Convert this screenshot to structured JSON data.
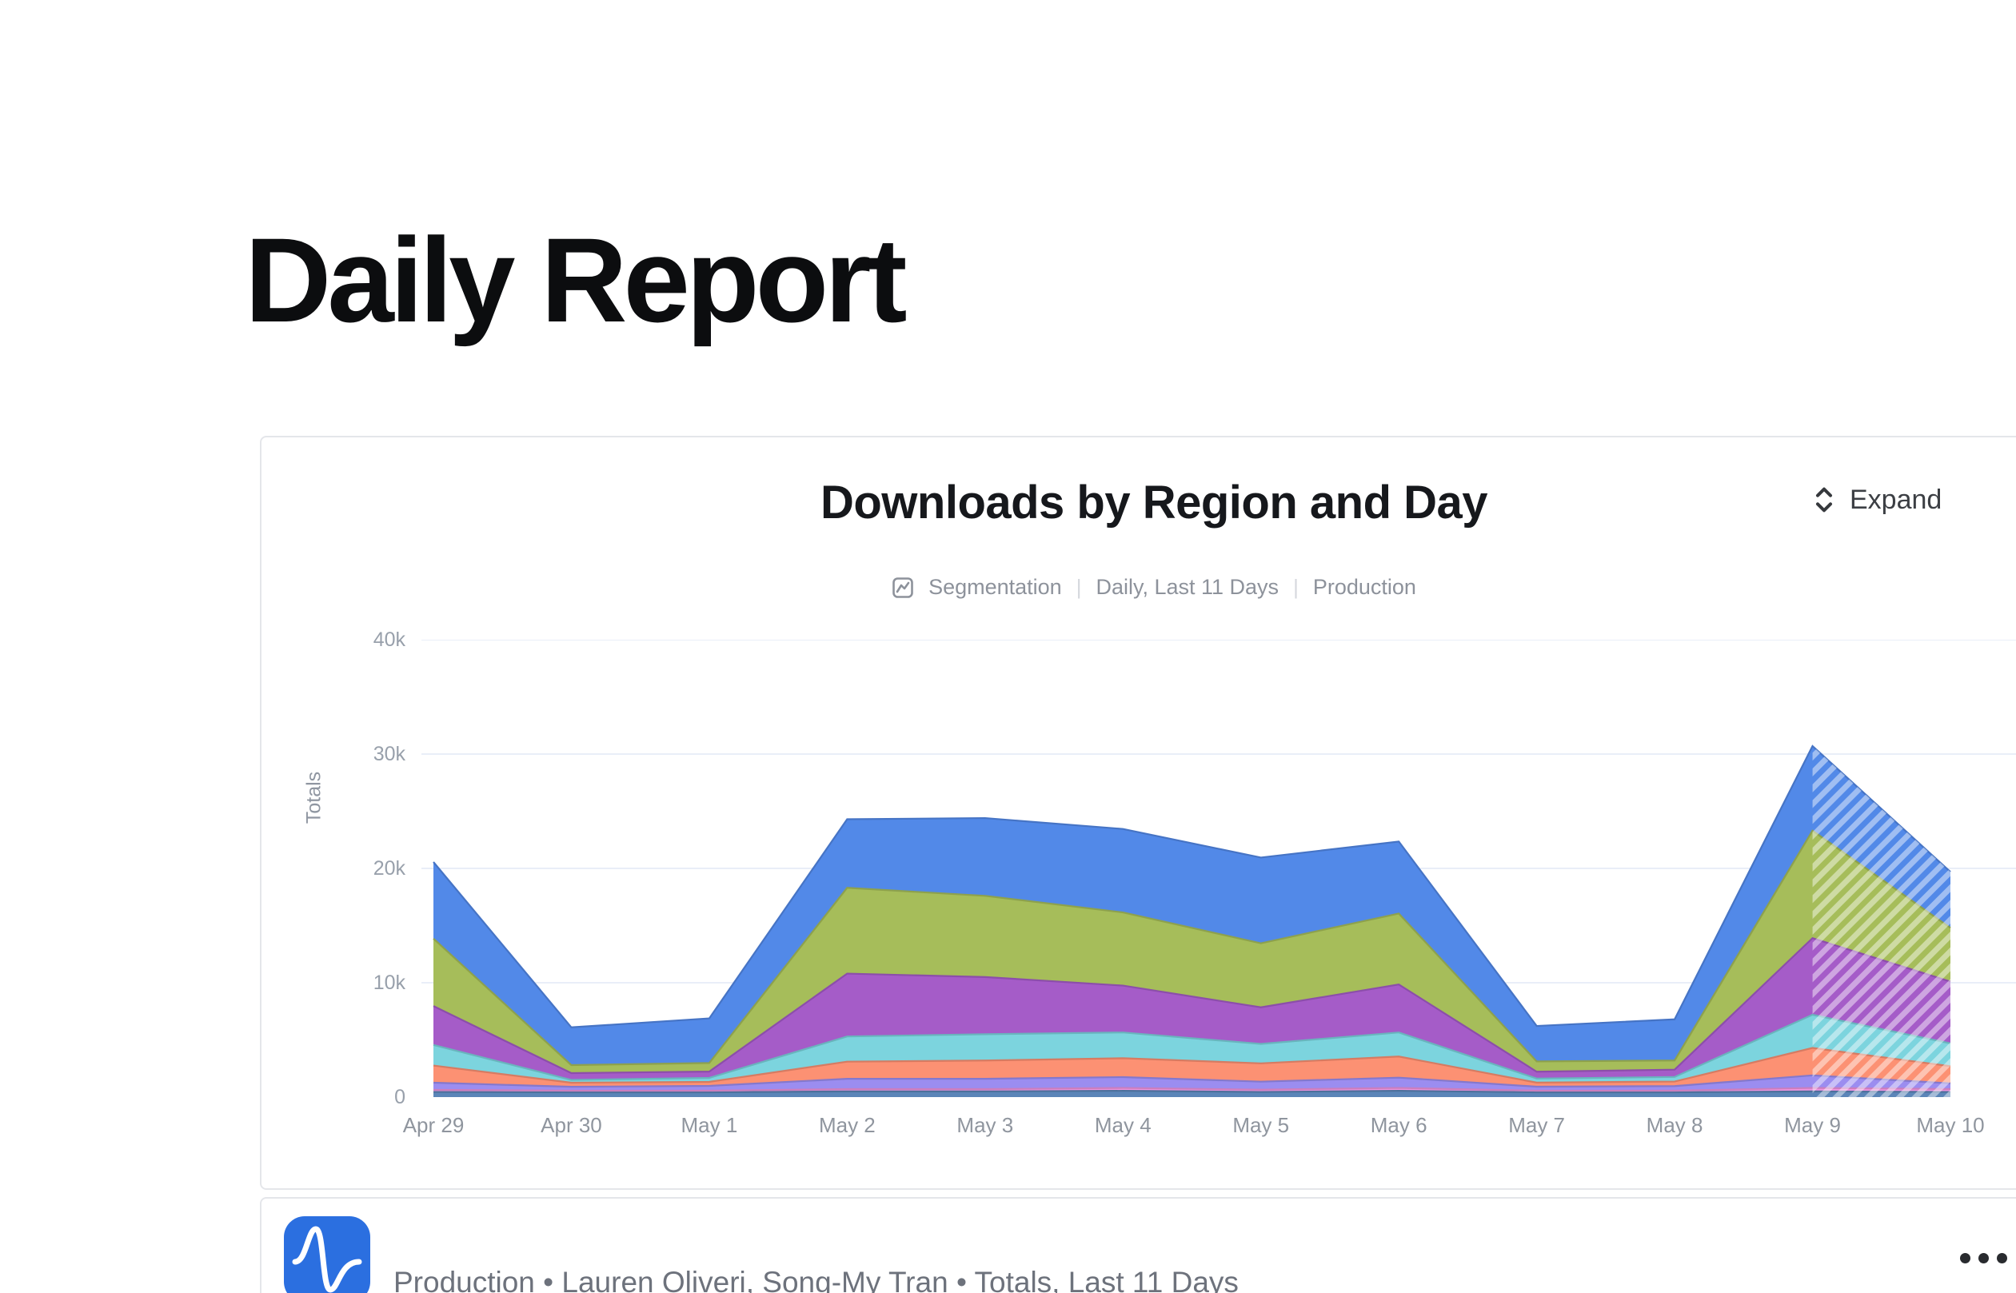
{
  "page": {
    "title": "Daily Report"
  },
  "chart_card": {
    "title": "Downloads by Region and Day",
    "expand_label": "Expand",
    "meta": {
      "chart_type": "Segmentation",
      "date_range": "Daily, Last 11 Days",
      "project": "Production",
      "separator": "|"
    }
  },
  "chart_data": {
    "type": "area",
    "stacked": true,
    "title": "Downloads by Region and Day",
    "ylabel": "Totals",
    "xlabel": "",
    "grid": true,
    "legend_position": "none",
    "ylim": [
      0,
      40000
    ],
    "ytick_values": [
      0,
      10000,
      20000,
      30000,
      40000
    ],
    "ytick_labels": [
      "0",
      "10k",
      "20k",
      "30k",
      "40k"
    ],
    "categories": [
      "Apr 29",
      "Apr 30",
      "May 1",
      "May 2",
      "May 3",
      "May 4",
      "May 5",
      "May 6",
      "May 7",
      "May 8",
      "May 9",
      "May 10"
    ],
    "series": [
      {
        "name": "steel-blue",
        "color": "#5b85b8",
        "values": [
          450,
          420,
          420,
          500,
          500,
          550,
          450,
          550,
          420,
          420,
          500,
          450
        ]
      },
      {
        "name": "pink",
        "color": "#ef94e0",
        "values": [
          180,
          140,
          140,
          200,
          200,
          250,
          200,
          250,
          140,
          140,
          300,
          250
        ]
      },
      {
        "name": "violet",
        "color": "#9b8df0",
        "values": [
          630,
          340,
          420,
          900,
          900,
          950,
          700,
          900,
          350,
          400,
          1100,
          500
        ]
      },
      {
        "name": "salmon",
        "color": "#fc9173",
        "values": [
          1500,
          360,
          350,
          1500,
          1600,
          1650,
          1600,
          1850,
          360,
          400,
          2400,
          1500
        ]
      },
      {
        "name": "teal",
        "color": "#7cd4de",
        "values": [
          1800,
          240,
          350,
          2200,
          2300,
          2250,
          1700,
          2100,
          350,
          400,
          2900,
          2000
        ]
      },
      {
        "name": "purple",
        "color": "#a55cc8",
        "values": [
          3400,
          600,
          550,
          5500,
          5000,
          4100,
          3200,
          4200,
          600,
          640,
          6700,
          5400
        ]
      },
      {
        "name": "olive-green",
        "color": "#a6bd5a",
        "values": [
          5900,
          700,
          750,
          7500,
          7100,
          6400,
          5600,
          6200,
          900,
          800,
          9400,
          4700
        ]
      },
      {
        "name": "blue",
        "color": "#5289e8",
        "values": [
          6700,
          3300,
          3900,
          6000,
          6800,
          7300,
          7500,
          6300,
          3100,
          3600,
          7400,
          4900
        ]
      }
    ],
    "incomplete_segment": {
      "from": "May 9",
      "to": "May 10",
      "style": "hatched"
    }
  },
  "footer_card": {
    "summary": "Production • Lauren Oliveri, Song-My Tran • Totals, Last 11 Days"
  },
  "colors": {
    "gridline": "#e9eef8",
    "axis_label": "#98a0ab",
    "card_border": "#e4e6ea",
    "logo_blue": "#2b6fe0",
    "title_text": "#16181c"
  }
}
